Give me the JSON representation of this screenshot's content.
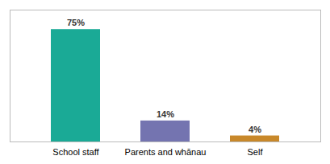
{
  "chart_data": {
    "type": "bar",
    "categories": [
      "School staff",
      "Parents and whānau",
      "Self"
    ],
    "values": [
      75,
      14,
      4
    ],
    "value_labels": [
      "75%",
      "14%",
      "4%"
    ],
    "colors": [
      "#1aaa96",
      "#7474b0",
      "#c8882a"
    ],
    "ylim": [
      0,
      88
    ],
    "data_labels": true,
    "tick_labels": "x"
  }
}
